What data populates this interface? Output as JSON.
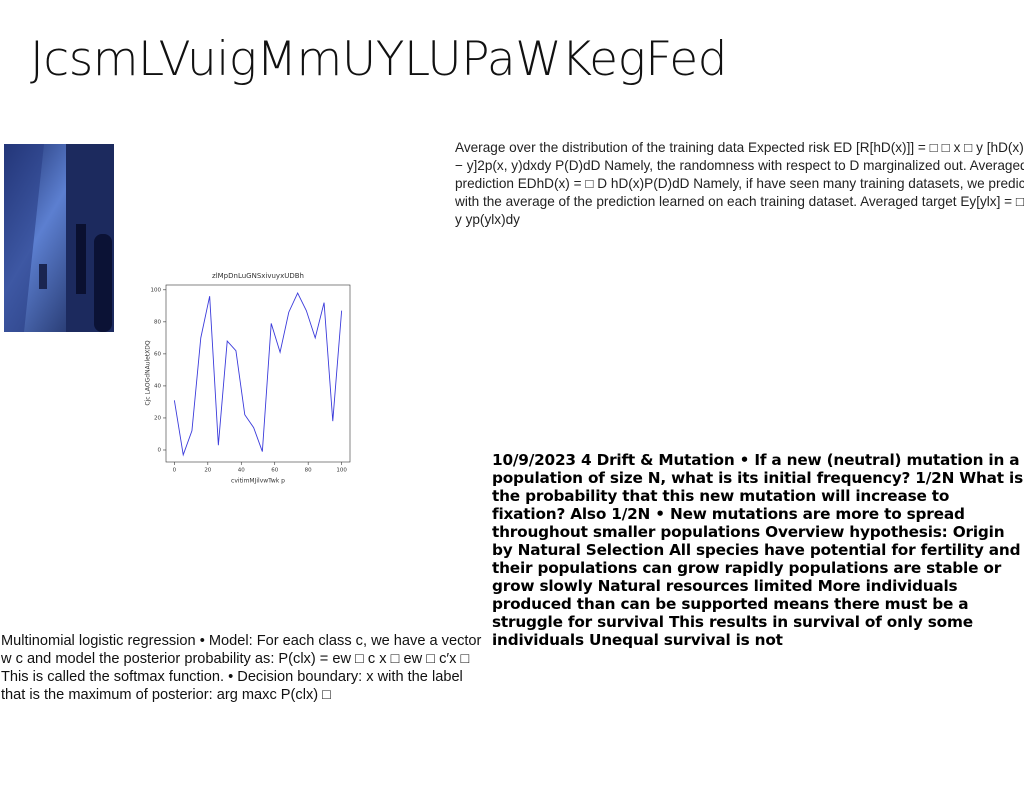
{
  "title": "JcsmLVuigMmUYLUPaWKegFed",
  "paragraphs": [
    "Average over the distribution of the training data Expected risk ED [R[hD(x)]] = □ □ x □ y [hD(x) − y]2p(x, y)dxdy P(D)dD Namely, the randomness with respect to D marginalized out. Averaged prediction EDhD(x) = □ D hD(x)P(D)dD Namely, if have seen many training datasets, we predict with the average of the prediction learned on each training dataset. Averaged target Ey[ylx] = □ y yp(ylx)dy",
    "10/9/2023 4 Drift & Mutation • If a new (neutral) mutation in a population of size N, what is its initial frequency? 1/2N What is the probability that this new mutation will increase to fixation? Also 1/2N • New mutations are more to spread throughout smaller populations Overview hypothesis: Origin by Natural Selection All species have potential for fertility and their populations can grow rapidly populations are stable or grow slowly Natural resources limited More individuals produced than can be supported means there must be a struggle for survival This results in survival of only some individuals Unequal survival is not",
    "Multinomial logistic regression • Model: For each class c, we have a vector w c and model the posterior probability as: P(clx) = ew □ c x □ ew □ c′x □ This is called the softmax function. • Decision boundary: x with the label that is the maximum of posterior: arg maxc P(clx) □"
  ],
  "chart_data": {
    "type": "line",
    "title": "zlMpDnLuGNSxivuyxUDBh",
    "x_label": "cvitimMJilvwTwk p",
    "y_label": "Cjc LAOGdNAuletXDQ",
    "x": [
      0,
      5.3,
      10.5,
      15.8,
      21.1,
      26.3,
      31.6,
      36.8,
      42.1,
      47.4,
      52.6,
      57.9,
      63.2,
      68.4,
      73.7,
      78.9,
      84.2,
      89.5,
      94.7,
      100
    ],
    "values": [
      31,
      -3,
      12,
      70,
      96,
      3,
      68,
      62,
      22,
      14,
      -1,
      79,
      61,
      86,
      98,
      87,
      70,
      92,
      18,
      87
    ],
    "color": "#3b3bdb",
    "xlim": [
      -5,
      105
    ],
    "ylim": [
      -7.5,
      103
    ],
    "xticks": [
      0,
      20,
      40,
      60,
      80,
      100
    ],
    "yticks": [
      0,
      20,
      40,
      60,
      80,
      100
    ]
  }
}
